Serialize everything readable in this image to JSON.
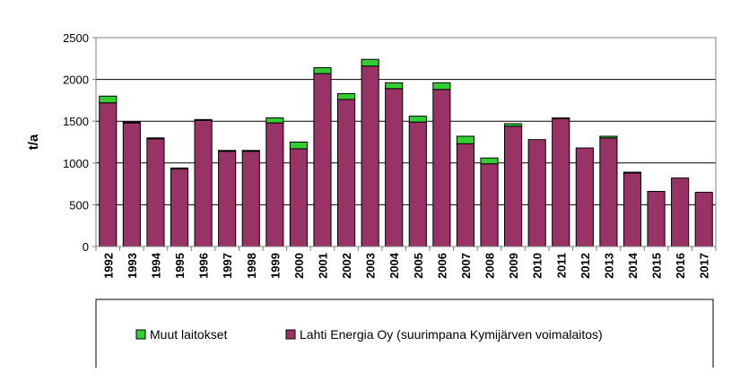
{
  "chart_data": {
    "type": "bar",
    "stacked": true,
    "ylabel": "t/a",
    "xlabel": "",
    "title": "",
    "ylim": [
      0,
      2500
    ],
    "yticks": [
      "0",
      "500",
      "1000",
      "1500",
      "2000",
      "2500"
    ],
    "grid": true,
    "legend_position": "bottom",
    "categories": [
      "1992",
      "1993",
      "1994",
      "1995",
      "1996",
      "1997",
      "1998",
      "1999",
      "2000",
      "2001",
      "2002",
      "2003",
      "2004",
      "2005",
      "2006",
      "2007",
      "2008",
      "2009",
      "2010",
      "2011",
      "2012",
      "2013",
      "2014",
      "2015",
      "2016",
      "2017"
    ],
    "series": [
      {
        "name": "Lahti Energia Oy (suurimpana Kymijärven voimalaitos)",
        "color": "#993366",
        "values": [
          1720,
          1480,
          1290,
          930,
          1510,
          1140,
          1140,
          1480,
          1170,
          2070,
          1760,
          2160,
          1890,
          1490,
          1880,
          1230,
          990,
          1440,
          1280,
          1530,
          1180,
          1300,
          880,
          660,
          820,
          650
        ]
      },
      {
        "name": "Muut laitokset",
        "color": "#33cc33",
        "values": [
          80,
          10,
          10,
          10,
          10,
          10,
          10,
          60,
          80,
          70,
          70,
          80,
          70,
          70,
          80,
          90,
          70,
          30,
          0,
          10,
          0,
          20,
          10,
          0,
          0,
          0
        ]
      }
    ]
  }
}
